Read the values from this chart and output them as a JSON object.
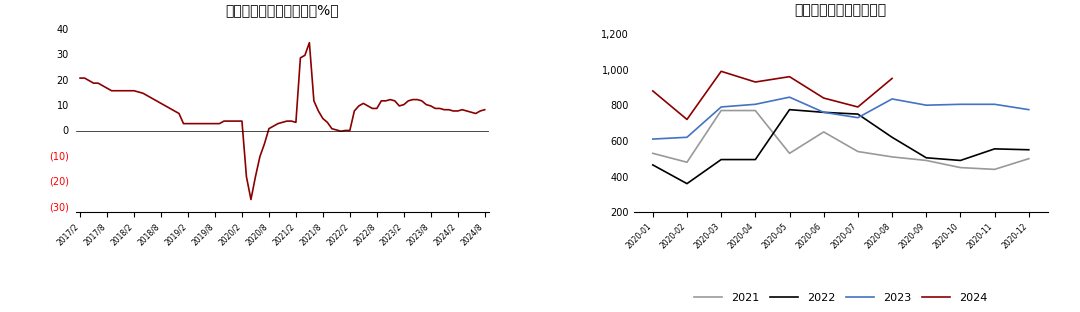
{
  "chart1": {
    "title": "基建投资累计同比增速（%）",
    "x_labels": [
      "2017/2",
      "2017/8",
      "2018/2",
      "2018/8",
      "2019/2",
      "2019/8",
      "2020/2",
      "2020/8",
      "2021/2",
      "2021/8",
      "2022/2",
      "2022/8",
      "2023/2",
      "2023/8",
      "2024/2",
      "2024/8"
    ],
    "x_values": [
      0,
      6,
      12,
      18,
      24,
      30,
      36,
      42,
      48,
      54,
      60,
      66,
      72,
      78,
      84,
      90
    ],
    "data": [
      21,
      19,
      17,
      16,
      15,
      13,
      11,
      7,
      3,
      1,
      1,
      2,
      3,
      3.5,
      3.5,
      4,
      3.5,
      -3,
      -18,
      -27,
      -18,
      -5,
      4,
      3,
      30,
      35,
      10,
      3,
      1,
      0.5,
      0,
      8.5,
      11,
      10,
      9,
      12,
      12.5,
      12,
      10.5,
      9,
      8.5,
      9,
      9,
      8,
      8,
      8,
      8,
      8.5
    ],
    "line_color": "#8B0000",
    "ylim": [
      -30,
      40
    ],
    "yticks": [
      40,
      30,
      20,
      10,
      0,
      -10,
      -20,
      -30
    ],
    "ytick_labels_pos": [
      "40",
      "30",
      "20",
      "10",
      "0"
    ],
    "ytick_labels_neg": [
      "-10",
      "-20",
      "-30"
    ]
  },
  "chart1_x": {
    "months": [
      "2017/2",
      "2017/8",
      "2018/2",
      "2018/8",
      "2019/2",
      "2019/8",
      "2020/2",
      "2020/8",
      "2021/2",
      "2021/8",
      "2022/2",
      "2022/8",
      "2023/2",
      "2023/8",
      "2024/2",
      "2024/8"
    ],
    "values": [
      21.0,
      17.0,
      16.5,
      15.5,
      3.0,
      1.0,
      4.0,
      -18.0,
      3.5,
      35.0,
      10.5,
      0.8,
      11.5,
      12.5,
      8.5,
      8.5
    ]
  },
  "chart2": {
    "title": "钢材出口季节性（万吨）",
    "x_labels": [
      "2020-01",
      "2020-02",
      "2020-03",
      "2020-04",
      "2020-05",
      "2020-06",
      "2020-07",
      "2020-08",
      "2020-09",
      "2020-10",
      "2020-11",
      "2020-12"
    ],
    "ylim": [
      200,
      1200
    ],
    "yticks": [
      200,
      400,
      600,
      800,
      1000,
      1200
    ],
    "series": {
      "2021": {
        "color": "#999999",
        "data": [
          530,
          480,
          770,
          770,
          530,
          650,
          540,
          510,
          490,
          450,
          440,
          500
        ]
      },
      "2022": {
        "color": "#000000",
        "data": [
          465,
          360,
          495,
          495,
          775,
          760,
          750,
          620,
          505,
          490,
          555,
          550
        ]
      },
      "2023": {
        "color": "#4472C4",
        "data": [
          610,
          620,
          790,
          805,
          845,
          760,
          730,
          835,
          800,
          805,
          805,
          775
        ]
      },
      "2024": {
        "color": "#8B0000",
        "data": [
          880,
          720,
          990,
          930,
          960,
          840,
          790,
          950,
          null,
          null,
          null,
          null
        ]
      }
    },
    "legend_order": [
      "2021",
      "2022",
      "2023",
      "2024"
    ]
  }
}
